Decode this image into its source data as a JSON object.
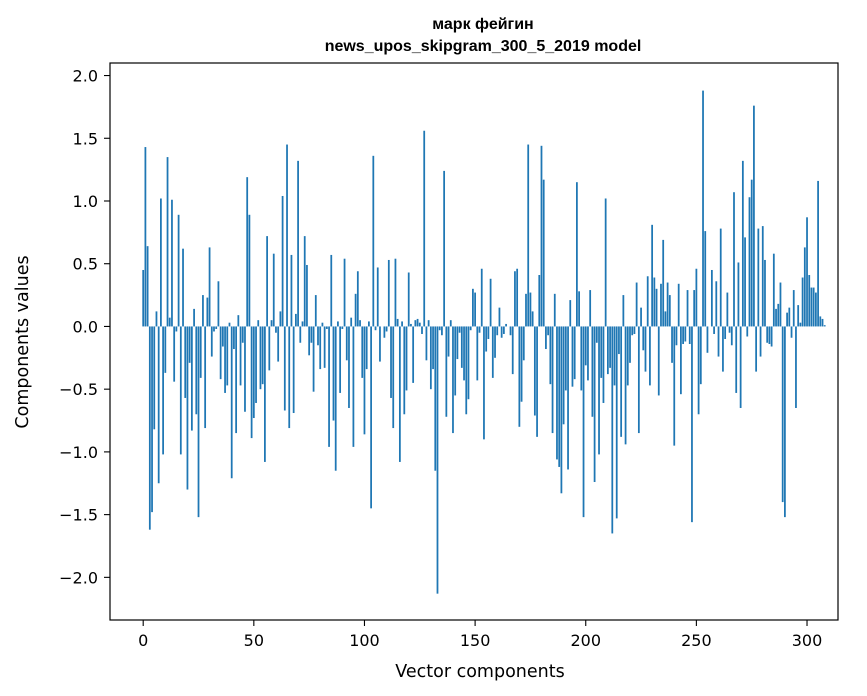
{
  "chart_data": {
    "type": "bar",
    "title_line1": "марк фейгин",
    "title_line2": "news_upos_skipgram_300_5_2019 model",
    "xlabel": "Vector components",
    "ylabel": "Components values",
    "xlim": [
      -15,
      314
    ],
    "ylim": [
      -2.34,
      2.1
    ],
    "xticks": [
      0,
      50,
      100,
      150,
      200,
      250,
      300
    ],
    "xtick_labels": [
      "0",
      "50",
      "100",
      "150",
      "200",
      "250",
      "300"
    ],
    "yticks": [
      2.0,
      1.5,
      1.0,
      0.5,
      0.0,
      -0.5,
      -1.0,
      -1.5,
      -2.0
    ],
    "ytick_labels": [
      "2.0",
      "1.5",
      "1.0",
      "0.5",
      "0.0",
      "−0.5",
      "−1.0",
      "−1.5",
      "−2.0"
    ],
    "bar_color": "#1f77b4",
    "values": [
      0.45,
      1.43,
      0.64,
      -1.62,
      -1.48,
      -0.82,
      0.12,
      -1.25,
      1.02,
      -1.02,
      -0.37,
      1.35,
      0.07,
      1.01,
      -0.44,
      -0.04,
      0.89,
      -1.02,
      0.62,
      -0.57,
      -1.3,
      -0.29,
      -0.83,
      0.14,
      -0.7,
      -1.52,
      -0.41,
      0.25,
      -0.81,
      0.23,
      0.63,
      -0.24,
      -0.04,
      -0.02,
      0.36,
      -0.42,
      -0.16,
      -0.53,
      -0.47,
      0.03,
      -1.21,
      -0.18,
      -0.85,
      0.09,
      -0.47,
      -0.13,
      -0.68,
      1.19,
      0.89,
      -0.89,
      -0.73,
      -0.61,
      0.05,
      -0.5,
      -0.46,
      -1.08,
      0.72,
      -0.35,
      0.05,
      0.58,
      -0.05,
      -0.28,
      0.12,
      1.04,
      -0.67,
      1.45,
      -0.81,
      0.57,
      -0.69,
      0.1,
      1.32,
      -0.13,
      0.04,
      0.72,
      0.49,
      -0.23,
      -0.13,
      -0.52,
      0.25,
      -0.15,
      -0.34,
      0.03,
      -0.33,
      -0.02,
      -0.96,
      0.57,
      -0.75,
      -1.15,
      0.04,
      -0.53,
      -0.02,
      0.54,
      -0.27,
      -0.65,
      0.07,
      -0.96,
      0.26,
      0.44,
      0.05,
      -0.41,
      -0.86,
      -0.34,
      0.04,
      -1.45,
      1.36,
      -0.03,
      0.47,
      -0.28,
      0.0,
      -0.09,
      -0.04,
      0.53,
      -0.57,
      -0.81,
      0.54,
      0.06,
      -1.08,
      0.04,
      -0.7,
      -0.51,
      0.43,
      0.02,
      -0.45,
      0.05,
      0.06,
      0.03,
      -0.06,
      1.56,
      -0.27,
      0.05,
      -0.5,
      -0.34,
      -1.15,
      -2.13,
      -0.03,
      -0.07,
      1.24,
      -0.72,
      -0.24,
      0.05,
      -0.85,
      -0.55,
      -0.26,
      -0.05,
      -0.33,
      -0.43,
      -0.7,
      -0.58,
      -0.03,
      0.3,
      0.27,
      -0.43,
      -0.05,
      0.46,
      -0.9,
      -0.2,
      -0.1,
      0.38,
      -0.41,
      -0.25,
      -0.07,
      0.15,
      -0.09,
      -0.06,
      0.02,
      0.0,
      -0.07,
      -0.38,
      0.44,
      0.46,
      -0.8,
      -0.6,
      -0.27,
      0.26,
      1.45,
      0.27,
      0.12,
      -0.71,
      -0.88,
      0.41,
      1.44,
      1.17,
      -0.18,
      -0.07,
      -0.46,
      -0.85,
      0.26,
      -1.06,
      -1.12,
      -1.33,
      -0.78,
      -0.51,
      -1.14,
      0.21,
      -0.48,
      -0.42,
      1.15,
      0.28,
      -0.51,
      -1.52,
      -0.31,
      -0.43,
      0.29,
      -0.72,
      -1.24,
      -0.13,
      -1.02,
      -0.41,
      -0.61,
      1.02,
      -0.38,
      -0.33,
      -1.65,
      -0.47,
      -1.53,
      -0.22,
      -0.88,
      0.25,
      -0.94,
      -0.47,
      -0.29,
      -0.07,
      -0.06,
      0.35,
      -0.85,
      0.15,
      -0.19,
      -0.36,
      0.4,
      -0.47,
      0.81,
      0.39,
      0.3,
      -0.55,
      0.34,
      0.69,
      0.12,
      0.35,
      0.25,
      -0.29,
      -0.95,
      -0.15,
      0.34,
      -0.54,
      -0.14,
      -0.12,
      0.29,
      -0.14,
      -1.56,
      0.29,
      0.46,
      -0.7,
      -0.46,
      1.88,
      0.76,
      -0.21,
      0.0,
      0.45,
      -0.06,
      0.36,
      -0.24,
      0.78,
      -0.36,
      -0.1,
      0.27,
      -0.05,
      -0.15,
      1.07,
      -0.53,
      0.51,
      -0.65,
      1.32,
      0.71,
      -0.08,
      1.03,
      1.17,
      1.76,
      -0.36,
      0.78,
      -0.24,
      0.8,
      0.53,
      -0.13,
      -0.14,
      -0.16,
      0.58,
      0.14,
      0.18,
      0.35,
      -1.4,
      -1.52,
      0.11,
      0.15,
      -0.09,
      0.29,
      -0.65,
      0.17,
      0.03,
      0.39,
      0.63,
      0.87,
      0.41,
      0.31,
      0.31,
      0.27,
      1.16,
      0.08,
      0.06,
      0.01,
      0.0,
      0.0
    ]
  }
}
